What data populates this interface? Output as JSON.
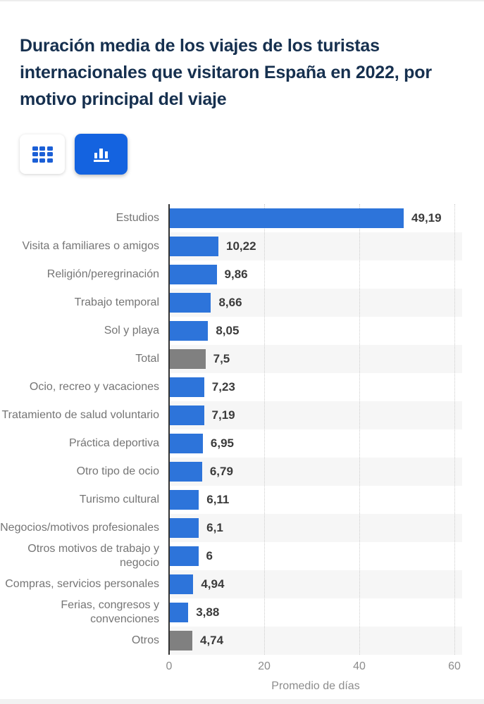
{
  "title": "Duración media de los viajes de los turistas internacionales que visitaron España en 2022, por motivo principal del viaje",
  "view_toggle": {
    "table_button": "table-view",
    "chart_button": "chart-view",
    "active": "chart-view"
  },
  "chart_data": {
    "type": "bar",
    "orientation": "horizontal",
    "title": "Duración media de los viajes de los turistas internacionales que visitaron España en 2022, por motivo principal del viaje",
    "xlabel": "Promedio de días",
    "ylabel": "",
    "xlim": [
      0,
      60
    ],
    "xticks": [
      "0",
      "20",
      "40",
      "60"
    ],
    "gridline_values": [
      20,
      40,
      60
    ],
    "grid": "vertical-dotted",
    "legend": "none",
    "zebra_rows": "even rows shaded",
    "categories": [
      "Estudios",
      "Visita a familiares o amigos",
      "Religión/peregrinación",
      "Trabajo temporal",
      "Sol y playa",
      "Total",
      "Ocio, recreo y vacaciones",
      "Tratamiento de salud voluntario",
      "Práctica deportiva",
      "Otro tipo de ocio",
      "Turismo cultural",
      "Negocios/motivos profesionales",
      "Otros motivos de trabajo y negocio",
      "Compras, servicios personales",
      "Ferias, congresos y convenciones",
      "Otros"
    ],
    "values": [
      49.19,
      10.22,
      9.86,
      8.66,
      8.05,
      7.5,
      7.23,
      7.19,
      6.95,
      6.79,
      6.11,
      6.1,
      6,
      4.94,
      3.88,
      4.74
    ],
    "value_labels": [
      "49,19",
      "10,22",
      "9,86",
      "8,66",
      "8,05",
      "7,5",
      "7,23",
      "7,19",
      "6,95",
      "6,79",
      "6,11",
      "6,1",
      "6",
      "4,94",
      "3,88",
      "4,74"
    ],
    "bar_colors": [
      "#2d74da",
      "#2d74da",
      "#2d74da",
      "#2d74da",
      "#2d74da",
      "#808080",
      "#2d74da",
      "#2d74da",
      "#2d74da",
      "#2d74da",
      "#2d74da",
      "#2d74da",
      "#2d74da",
      "#2d74da",
      "#2d74da",
      "#808080"
    ]
  },
  "colors": {
    "title_text": "#16304f",
    "bar_blue": "#2d74da",
    "bar_gray": "#808080",
    "button_blue": "#1463e0",
    "icon_blue": "#1b5fd6",
    "label_gray": "#757575",
    "value_text": "#3b3b3b",
    "tick_gray": "#8c8c8c",
    "stripe": "#f6f6f6",
    "gridline": "#cccccc",
    "axis_line": "#333333",
    "top_border": "#ededed",
    "bottom_strip": "#f2f2f2"
  }
}
